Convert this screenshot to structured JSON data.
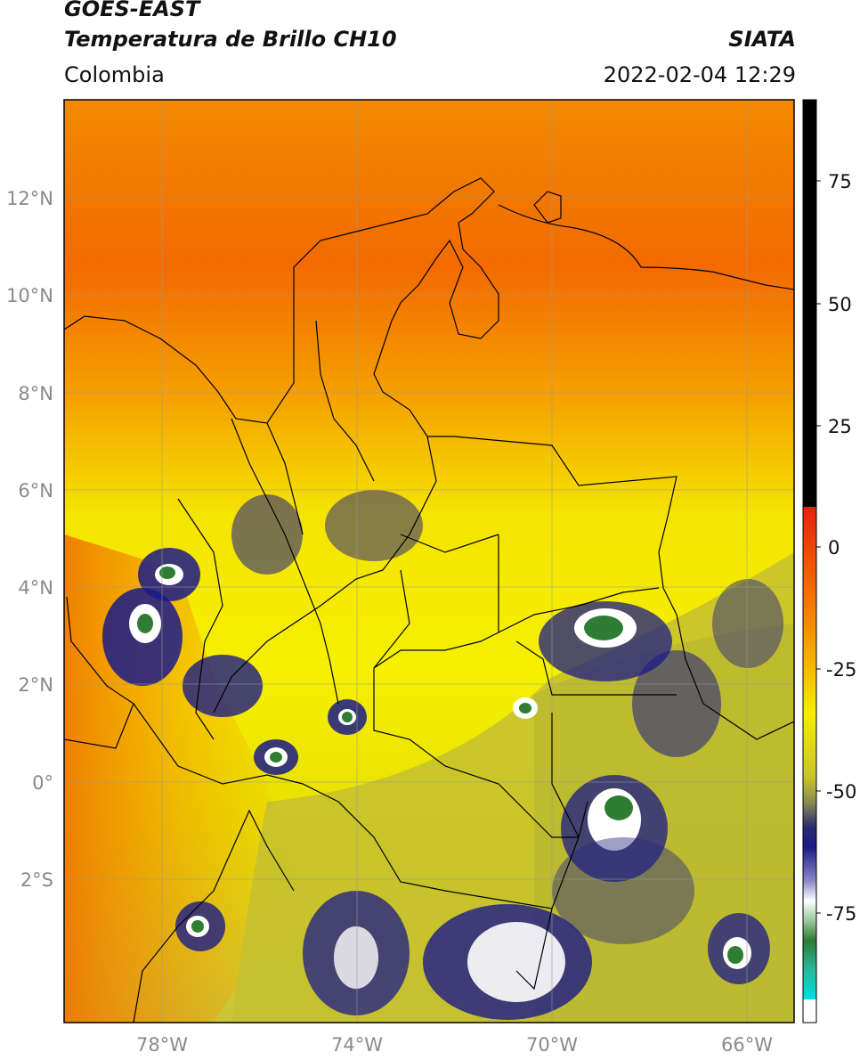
{
  "header": {
    "satellite": "GOES-EAST",
    "product": "Temperatura de Brillo CH10",
    "region": "Colombia",
    "agency": "SIATA",
    "datetime": "2022-02-04 12:29"
  },
  "map": {
    "lat_labels": [
      "12°N",
      "10°N",
      "8°N",
      "6°N",
      "4°N",
      "2°N",
      "0°",
      "2°S"
    ],
    "lon_labels": [
      "78°W",
      "74°W",
      "70°W",
      "66°W"
    ],
    "gridlines": true
  },
  "colorbar": {
    "tick_labels": [
      "75",
      "50",
      "25",
      "0",
      "-25",
      "-50",
      "-75"
    ],
    "colors": {
      "hot": "#000000",
      "warm_red": "#e8200c",
      "orange": "#f59a00",
      "yellow": "#f5ee00",
      "olive": "#b8b632",
      "navy": "#1a1a80",
      "white": "#ffffff",
      "green": "#2e7d32",
      "cyan": "#00d5cf"
    }
  }
}
